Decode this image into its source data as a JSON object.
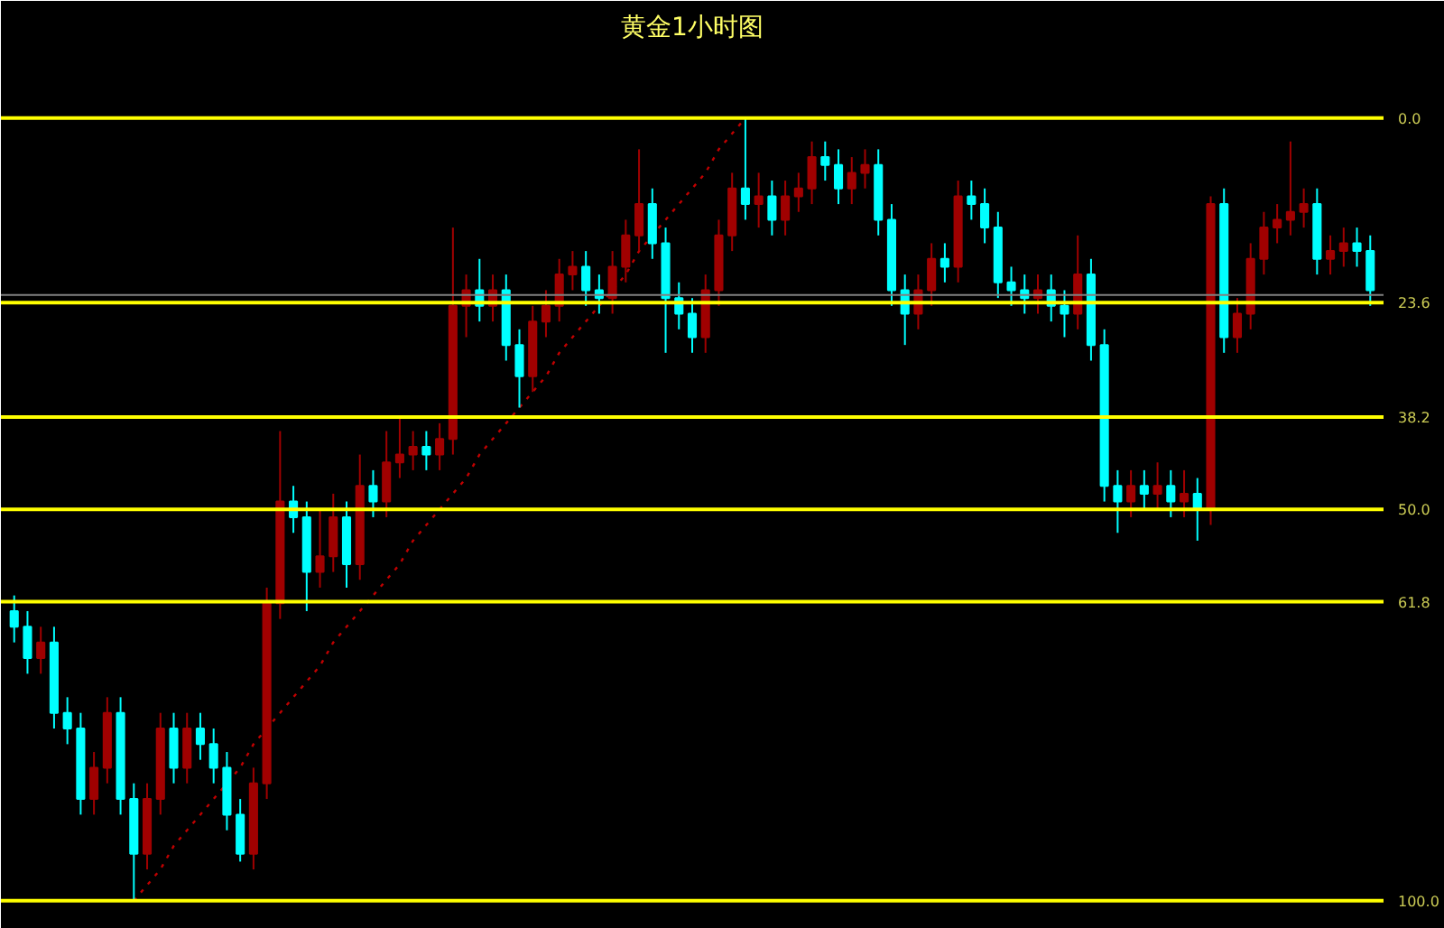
{
  "chart_data": {
    "type": "candlestick",
    "title": "黄金1小时图",
    "tick_labels": "y",
    "grid": false,
    "categories": [
      null,
      null,
      null,
      null,
      null,
      null,
      null,
      null,
      null,
      null,
      null,
      null,
      null,
      null,
      null,
      null,
      null,
      null,
      null,
      null,
      null,
      null,
      null,
      null,
      null,
      null,
      null,
      null,
      null,
      null,
      null,
      null,
      null,
      null,
      null,
      null,
      null,
      null,
      null,
      null,
      null,
      null,
      null,
      null,
      null,
      null,
      null,
      null,
      null,
      null,
      null,
      null,
      null,
      null,
      null,
      null,
      null,
      null,
      null,
      null,
      null,
      null,
      null,
      null,
      null,
      null,
      null,
      null,
      null,
      null,
      null,
      null,
      null,
      null,
      null,
      null,
      null,
      null,
      null,
      null,
      null,
      null,
      null,
      null,
      null,
      null,
      null,
      null,
      null,
      null,
      null,
      null,
      null,
      null,
      null,
      null,
      null,
      null,
      null,
      null,
      null,
      null,
      null
    ],
    "ylim": [
      103.6,
      -8.5
    ],
    "yticks": [
      {
        "value": 0,
        "label": "0.0"
      },
      23.6,
      38.2,
      {
        "value": 50,
        "label": "50.0"
      },
      61.8,
      {
        "value": 100,
        "label": "100.0"
      }
    ],
    "ohlc": [
      [
        63,
        67,
        61,
        65
      ],
      [
        65,
        71,
        63,
        69
      ],
      [
        69,
        71,
        65,
        67
      ],
      [
        67,
        78,
        65,
        76
      ],
      [
        76,
        80,
        74,
        78
      ],
      [
        78,
        89,
        76,
        87
      ],
      [
        87,
        89,
        81,
        83
      ],
      [
        83,
        85,
        74,
        76
      ],
      [
        76,
        89,
        74,
        87
      ],
      [
        87,
        100,
        85,
        94
      ],
      [
        94,
        96,
        85,
        87
      ],
      [
        87,
        89,
        76,
        78
      ],
      [
        78,
        85,
        76,
        83
      ],
      [
        83,
        85,
        76,
        78
      ],
      [
        78,
        82,
        76,
        80
      ],
      [
        80,
        85,
        78,
        83
      ],
      [
        83,
        91,
        81,
        89
      ],
      [
        89,
        95,
        87,
        94
      ],
      [
        94,
        96,
        83,
        85
      ],
      [
        85,
        87,
        60,
        62
      ],
      [
        62,
        64,
        40,
        49
      ],
      [
        49,
        53,
        47,
        51
      ],
      [
        51,
        63,
        49,
        58
      ],
      [
        58,
        60,
        50,
        56
      ],
      [
        56,
        58,
        48,
        51
      ],
      [
        51,
        60,
        49,
        57
      ],
      [
        57,
        59,
        43,
        47
      ],
      [
        47,
        51,
        45,
        49
      ],
      [
        49,
        51,
        40,
        44
      ],
      [
        44,
        46,
        38,
        43
      ],
      [
        43,
        45,
        40,
        42
      ],
      [
        42,
        45,
        40,
        43
      ],
      [
        43,
        45,
        39,
        41
      ],
      [
        41,
        43,
        14,
        24
      ],
      [
        24,
        28,
        20,
        22
      ],
      [
        22,
        26,
        18,
        24
      ],
      [
        24,
        26,
        20,
        22
      ],
      [
        22,
        31,
        20,
        29
      ],
      [
        29,
        37,
        27,
        33
      ],
      [
        33,
        35,
        24,
        26
      ],
      [
        26,
        28,
        22,
        24
      ],
      [
        24,
        26,
        18,
        20
      ],
      [
        20,
        22,
        17,
        19
      ],
      [
        19,
        24,
        17,
        22
      ],
      [
        22,
        25,
        20,
        23
      ],
      [
        23,
        25,
        17,
        19
      ],
      [
        19,
        21,
        13,
        15
      ],
      [
        15,
        17,
        4,
        11
      ],
      [
        11,
        18,
        9,
        16
      ],
      [
        16,
        30,
        14,
        23
      ],
      [
        23,
        27,
        21,
        25
      ],
      [
        25,
        30,
        23,
        28
      ],
      [
        28,
        30,
        20,
        22
      ],
      [
        22,
        24,
        13,
        15
      ],
      [
        15,
        17,
        7,
        9
      ],
      [
        9,
        13,
        0,
        11
      ],
      [
        11,
        14,
        7,
        10
      ],
      [
        10,
        15,
        8,
        13
      ],
      [
        13,
        15,
        8,
        10
      ],
      [
        10,
        12,
        7,
        9
      ],
      [
        9,
        11,
        3,
        5
      ],
      [
        5,
        8,
        3,
        6
      ],
      [
        6,
        11,
        4,
        9
      ],
      [
        9,
        11,
        5,
        7
      ],
      [
        7,
        9,
        4,
        6
      ],
      [
        6,
        15,
        4,
        13
      ],
      [
        13,
        24,
        11,
        22
      ],
      [
        22,
        29,
        20,
        25
      ],
      [
        25,
        27,
        20,
        22
      ],
      [
        22,
        24,
        16,
        18
      ],
      [
        18,
        21,
        16,
        19
      ],
      [
        19,
        21,
        8,
        10
      ],
      [
        10,
        13,
        8,
        11
      ],
      [
        11,
        16,
        9,
        14
      ],
      [
        14,
        23,
        12,
        21
      ],
      [
        21,
        24,
        19,
        22
      ],
      [
        22,
        25,
        20,
        23
      ],
      [
        23,
        25,
        20,
        22
      ],
      [
        22,
        26,
        20,
        24
      ],
      [
        24,
        28,
        22,
        25
      ],
      [
        25,
        27,
        15,
        20
      ],
      [
        20,
        31,
        18,
        29
      ],
      [
        29,
        49,
        27,
        47
      ],
      [
        47,
        53,
        45,
        49
      ],
      [
        49,
        51,
        45,
        47
      ],
      [
        47,
        50,
        45,
        48
      ],
      [
        48,
        50,
        44,
        47
      ],
      [
        47,
        51,
        45,
        49
      ],
      [
        49,
        51,
        45,
        48
      ],
      [
        48,
        54,
        46,
        50
      ],
      [
        50,
        52,
        10,
        11
      ],
      [
        11,
        30,
        9,
        28
      ],
      [
        28,
        30,
        23,
        25
      ],
      [
        25,
        27,
        16,
        18
      ],
      [
        18,
        20,
        12,
        14
      ],
      [
        14,
        16,
        11,
        13
      ],
      [
        13,
        15,
        3,
        12
      ],
      [
        12,
        14,
        9,
        11
      ],
      [
        11,
        20,
        9,
        18
      ],
      [
        18,
        20,
        15,
        17
      ],
      [
        17,
        19,
        14,
        16
      ],
      [
        16,
        19,
        14,
        17
      ],
      [
        17,
        24,
        15,
        22
      ]
    ],
    "colors": [
      "#00ffff",
      "#00ffff",
      "#a00000",
      "#00ffff",
      "#00ffff",
      "#00ffff",
      "#a00000",
      "#a00000",
      "#00ffff",
      "#00ffff",
      "#a00000",
      "#a00000",
      "#00ffff",
      "#a00000",
      "#00ffff",
      "#00ffff",
      "#00ffff",
      "#00ffff",
      "#a00000",
      "#a00000",
      "#a00000",
      "#00ffff",
      "#00ffff",
      "#a00000",
      "#a00000",
      "#00ffff",
      "#a00000",
      "#00ffff",
      "#a00000",
      "#a00000",
      "#a00000",
      "#00ffff",
      "#a00000",
      "#a00000",
      "#a00000",
      "#00ffff",
      "#a00000",
      "#00ffff",
      "#00ffff",
      "#a00000",
      "#a00000",
      "#a00000",
      "#a00000",
      "#00ffff",
      "#00ffff",
      "#a00000",
      "#a00000",
      "#a00000",
      "#00ffff",
      "#00ffff",
      "#00ffff",
      "#00ffff",
      "#a00000",
      "#a00000",
      "#a00000",
      "#00ffff",
      "#a00000",
      "#00ffff",
      "#a00000",
      "#a00000",
      "#a00000",
      "#00ffff",
      "#00ffff",
      "#a00000",
      "#a00000",
      "#00ffff",
      "#00ffff",
      "#00ffff",
      "#a00000",
      "#a00000",
      "#00ffff",
      "#a00000",
      "#00ffff",
      "#00ffff",
      "#00ffff",
      "#00ffff",
      "#00ffff",
      "#a00000",
      "#00ffff",
      "#00ffff",
      "#a00000",
      "#00ffff",
      "#00ffff",
      "#00ffff",
      "#a00000",
      "#00ffff",
      "#a00000",
      "#00ffff",
      "#a00000",
      "#00ffff",
      "#a00000",
      "#00ffff",
      "#a00000",
      "#a00000",
      "#a00000",
      "#a00000",
      "#a00000",
      "#a00000",
      "#00ffff",
      "#a00000",
      "#a00000",
      "#00ffff",
      "#00ffff"
    ],
    "series": [
      {
        "type": "line",
        "values": [
          null,
          null,
          null,
          null,
          null,
          null,
          null,
          null,
          null,
          100,
          98,
          96,
          93,
          91,
          89,
          87,
          85,
          83,
          80,
          78,
          76,
          74,
          72,
          70,
          67,
          65,
          63,
          61,
          59,
          57,
          54,
          52,
          50,
          48,
          46,
          43,
          41,
          39,
          37,
          35,
          33,
          30,
          28,
          26,
          24,
          22,
          20,
          17,
          15,
          13,
          11,
          9,
          7,
          4,
          2,
          0,
          null,
          null,
          null,
          null,
          null,
          null,
          null,
          null,
          null,
          null,
          null,
          null,
          null,
          null,
          null,
          null,
          null,
          null,
          null,
          null,
          null,
          null,
          null,
          null,
          null,
          null,
          null,
          null,
          null,
          null,
          null,
          null,
          null,
          null,
          null,
          null,
          null,
          null,
          null,
          null,
          null,
          null,
          null,
          null,
          null,
          null,
          null
        ],
        "color": "#c00000",
        "line_style": "dotted"
      }
    ],
    "ref_lines": [
      {
        "axis": "y",
        "value": 0,
        "color": "#ffff00"
      },
      {
        "axis": "y",
        "value": 23.6,
        "color": "#ffff00"
      },
      {
        "axis": "y",
        "value": 38.2,
        "color": "#ffff00"
      },
      {
        "axis": "y",
        "value": 50,
        "color": "#ffff00"
      },
      {
        "axis": "y",
        "value": 61.8,
        "color": "#ffff00"
      },
      {
        "axis": "y",
        "value": 100,
        "color": "#ffff00"
      },
      {
        "axis": "y",
        "value": 22.6,
        "color": "#808080"
      }
    ]
  }
}
